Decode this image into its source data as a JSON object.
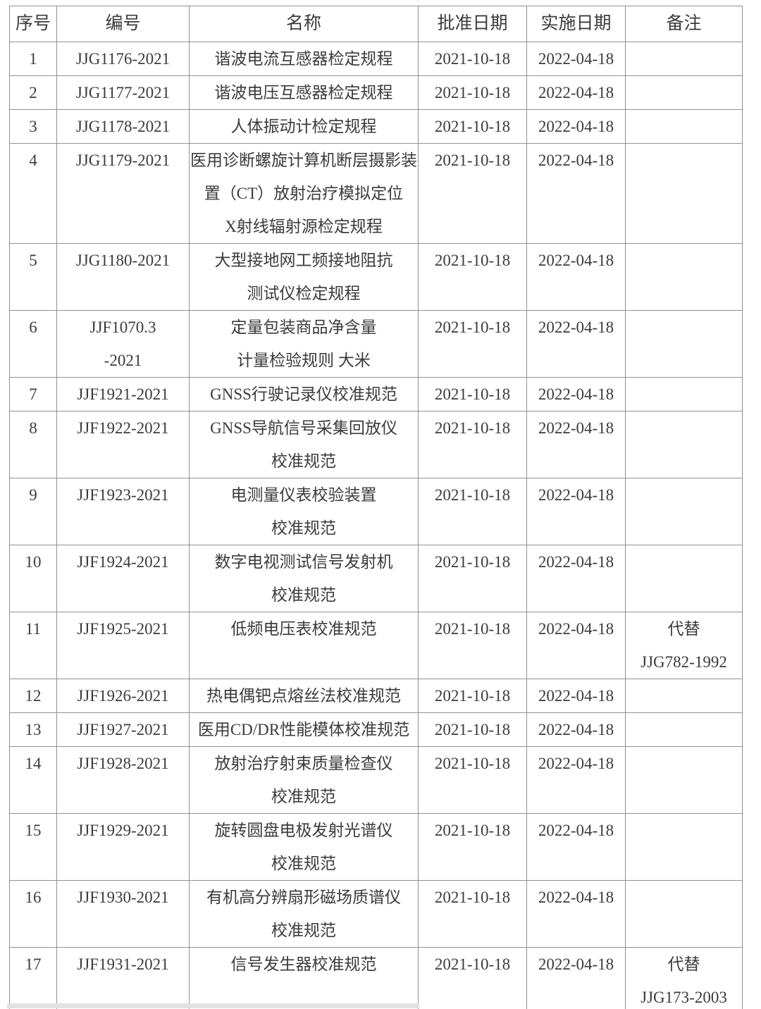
{
  "table": {
    "headers": [
      "序号",
      "编号",
      "名称",
      "批准日期",
      "实施日期",
      "备注"
    ],
    "rows": [
      {
        "no": "1",
        "code": [
          "JJG1176-2021"
        ],
        "name": [
          "谐波电流互感器检定规程"
        ],
        "approval_date": "2021-10-18",
        "implementation_date": "2022-04-18",
        "remark": []
      },
      {
        "no": "2",
        "code": [
          "JJG1177-2021"
        ],
        "name": [
          "谐波电压互感器检定规程"
        ],
        "approval_date": "2021-10-18",
        "implementation_date": "2022-04-18",
        "remark": []
      },
      {
        "no": "3",
        "code": [
          "JJG1178-2021"
        ],
        "name": [
          "人体振动计检定规程"
        ],
        "approval_date": "2021-10-18",
        "implementation_date": "2022-04-18",
        "remark": []
      },
      {
        "no": "4",
        "code": [
          "JJG1179-2021"
        ],
        "name": [
          "医用诊断螺旋计算机断层摄影装",
          "置（CT）放射治疗模拟定位",
          "X射线辐射源检定规程"
        ],
        "approval_date": "2021-10-18",
        "implementation_date": "2022-04-18",
        "remark": []
      },
      {
        "no": "5",
        "code": [
          "JJG1180-2021"
        ],
        "name": [
          "大型接地网工频接地阻抗",
          "测试仪检定规程"
        ],
        "approval_date": "2021-10-18",
        "implementation_date": "2022-04-18",
        "remark": []
      },
      {
        "no": "6",
        "code": [
          "JJF1070.3",
          "-2021"
        ],
        "name": [
          "定量包装商品净含量",
          "计量检验规则 大米"
        ],
        "approval_date": "2021-10-18",
        "implementation_date": "2022-04-18",
        "remark": []
      },
      {
        "no": "7",
        "code": [
          "JJF1921-2021"
        ],
        "name": [
          "GNSS行驶记录仪校准规范"
        ],
        "approval_date": "2021-10-18",
        "implementation_date": "2022-04-18",
        "remark": []
      },
      {
        "no": "8",
        "code": [
          "JJF1922-2021"
        ],
        "name": [
          "GNSS导航信号采集回放仪",
          "校准规范"
        ],
        "approval_date": "2021-10-18",
        "implementation_date": "2022-04-18",
        "remark": []
      },
      {
        "no": "9",
        "code": [
          "JJF1923-2021"
        ],
        "name": [
          "电测量仪表校验装置",
          "校准规范"
        ],
        "approval_date": "2021-10-18",
        "implementation_date": "2022-04-18",
        "remark": []
      },
      {
        "no": "10",
        "code": [
          "JJF1924-2021"
        ],
        "name": [
          "数字电视测试信号发射机",
          "校准规范"
        ],
        "approval_date": "2021-10-18",
        "implementation_date": "2022-04-18",
        "remark": []
      },
      {
        "no": "11",
        "code": [
          "JJF1925-2021"
        ],
        "name": [
          "低频电压表校准规范"
        ],
        "approval_date": "2021-10-18",
        "implementation_date": "2022-04-18",
        "remark": [
          "代替",
          "JJG782-1992"
        ]
      },
      {
        "no": "12",
        "code": [
          "JJF1926-2021"
        ],
        "name": [
          "热电偶钯点熔丝法校准规范"
        ],
        "approval_date": "2021-10-18",
        "implementation_date": "2022-04-18",
        "remark": []
      },
      {
        "no": "13",
        "code": [
          "JJF1927-2021"
        ],
        "name": [
          "医用CD/DR性能模体校准规范"
        ],
        "approval_date": "2021-10-18",
        "implementation_date": "2022-04-18",
        "remark": []
      },
      {
        "no": "14",
        "code": [
          "JJF1928-2021"
        ],
        "name": [
          "放射治疗射束质量检查仪",
          "校准规范"
        ],
        "approval_date": "2021-10-18",
        "implementation_date": "2022-04-18",
        "remark": []
      },
      {
        "no": "15",
        "code": [
          "JJF1929-2021"
        ],
        "name": [
          "旋转圆盘电极发射光谱仪",
          "校准规范"
        ],
        "approval_date": "2021-10-18",
        "implementation_date": "2022-04-18",
        "remark": []
      },
      {
        "no": "16",
        "code": [
          "JJF1930-2021"
        ],
        "name": [
          "有机高分辨扇形磁场质谱仪",
          "校准规范"
        ],
        "approval_date": "2021-10-18",
        "implementation_date": "2022-04-18",
        "remark": []
      },
      {
        "no": "17",
        "code": [
          "JJF1931-2021"
        ],
        "name": [
          "信号发生器校准规范"
        ],
        "approval_date": "2021-10-18",
        "implementation_date": "2022-04-18",
        "remark": [
          "代替",
          "JJG173-2003"
        ]
      }
    ]
  }
}
